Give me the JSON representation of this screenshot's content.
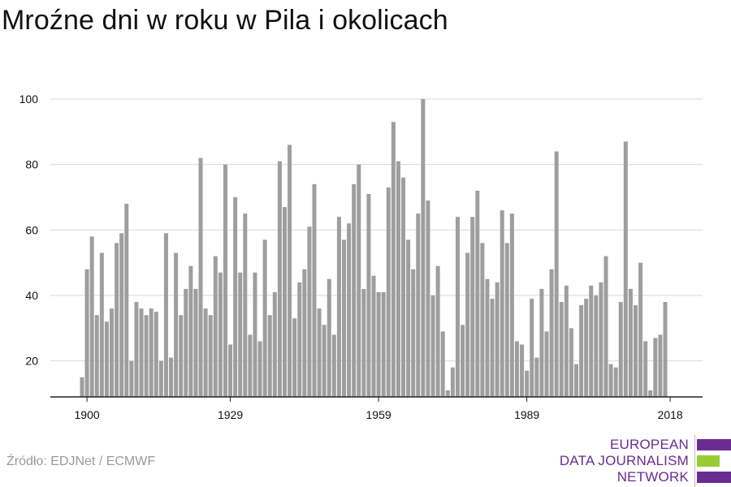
{
  "title": "Mroźne dni w roku w Pila i okolicach",
  "source": "Źródło: EDJNet / ECMWF",
  "logo": {
    "line1": "EUROPEAN",
    "line2": "DATA JOURNALISM",
    "line3": "NETWORK",
    "colors": [
      "#6a2c91",
      "#99cc33",
      "#6a2c91"
    ]
  },
  "colors": {
    "bar": "#9e9e9e",
    "grid": "#d9d9d9",
    "axis": "#222222"
  },
  "chart_data": {
    "type": "bar",
    "title": "Mroźne dni w roku w Pila i okolicach",
    "xlabel": "",
    "ylabel": "",
    "x_start": 1899,
    "x_end": 2018,
    "x_ticks": [
      1900,
      1929,
      1959,
      1989,
      2018
    ],
    "y_ticks": [
      20,
      40,
      60,
      80,
      100
    ],
    "ylim": [
      9,
      100
    ],
    "grid": true,
    "values": [
      15,
      48,
      58,
      34,
      53,
      32,
      36,
      56,
      59,
      68,
      20,
      38,
      36,
      34,
      36,
      35,
      20,
      59,
      21,
      53,
      34,
      42,
      49,
      42,
      82,
      36,
      34,
      52,
      47,
      80,
      25,
      70,
      47,
      65,
      28,
      47,
      26,
      57,
      34,
      41,
      81,
      67,
      86,
      33,
      44,
      48,
      61,
      74,
      36,
      31,
      45,
      28,
      64,
      57,
      62,
      74,
      80,
      42,
      71,
      46,
      41,
      41,
      73,
      93,
      81,
      76,
      57,
      48,
      65,
      100,
      69,
      40,
      49,
      29,
      11,
      18,
      64,
      31,
      53,
      64,
      72,
      56,
      45,
      39,
      44,
      66,
      56,
      65,
      26,
      25,
      17,
      39,
      21,
      42,
      29,
      48,
      84,
      38,
      43,
      30,
      19,
      37,
      39,
      43,
      40,
      44,
      52,
      19,
      18,
      38,
      87,
      42,
      37,
      50,
      26,
      11,
      27,
      28,
      38
    ]
  }
}
